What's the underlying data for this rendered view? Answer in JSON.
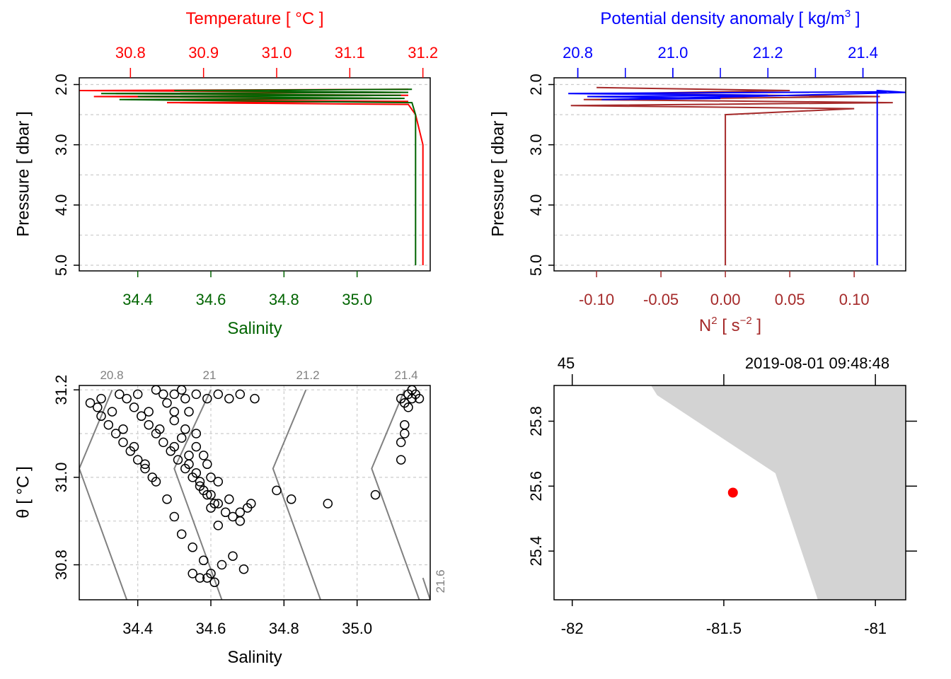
{
  "colors": {
    "temperature": "#ff0000",
    "salinity": "#006400",
    "density": "#0000ff",
    "n2": "#a52a2a",
    "isopycnal": "#808080",
    "land": "#d3d3d3",
    "station": "#ff0000",
    "grid": "#cccccc"
  },
  "chart_data": [
    {
      "id": "ts-profile",
      "type": "line",
      "title": "",
      "ylabel": "Pressure [ dbar ]",
      "ylim": [
        5.0,
        1.9
      ],
      "y_ticks": [
        "2.0",
        "3.0",
        "4.0",
        "5.0"
      ],
      "y_tick_values": [
        2.0,
        3.0,
        4.0,
        5.0
      ],
      "top_axis": {
        "label": "Temperature [ °C ]",
        "range": [
          30.73,
          31.21
        ],
        "ticks": [
          "30.8",
          "30.9",
          "31.0",
          "31.1",
          "31.2"
        ],
        "tick_values": [
          30.8,
          30.9,
          31.0,
          31.1,
          31.2
        ]
      },
      "bottom_axis": {
        "label": "Salinity",
        "range": [
          34.24,
          35.2
        ],
        "ticks": [
          "34.4",
          "34.6",
          "34.8",
          "35.0"
        ],
        "tick_values": [
          34.4,
          34.6,
          34.8,
          35.0
        ]
      },
      "grid": true,
      "series": [
        {
          "axis": "top",
          "y": [
            2.08,
            2.1,
            2.13,
            2.15,
            2.18,
            2.2,
            2.23,
            2.25,
            2.28,
            2.3,
            2.33,
            2.5,
            3.0,
            3.5,
            4.0,
            4.5,
            5.0
          ],
          "x": [
            31.18,
            30.73,
            31.17,
            30.78,
            31.18,
            30.75,
            31.17,
            30.8,
            31.18,
            30.85,
            31.18,
            31.19,
            31.2,
            31.2,
            31.2,
            31.2,
            31.2
          ]
        },
        {
          "axis": "bottom",
          "y": [
            2.08,
            2.1,
            2.13,
            2.15,
            2.18,
            2.2,
            2.23,
            2.25,
            2.3,
            2.5,
            3.0,
            3.5,
            4.0,
            4.5,
            5.0
          ],
          "x": [
            35.15,
            34.5,
            35.14,
            34.3,
            35.12,
            34.4,
            35.13,
            34.35,
            35.15,
            35.16,
            35.16,
            35.16,
            35.16,
            35.16,
            35.16
          ]
        }
      ]
    },
    {
      "id": "density-profile",
      "type": "line",
      "title": "",
      "ylabel": "Pressure [ dbar ]",
      "ylim": [
        5.0,
        1.9
      ],
      "y_ticks": [
        "2.0",
        "3.0",
        "4.0",
        "5.0"
      ],
      "y_tick_values": [
        2.0,
        3.0,
        4.0,
        5.0
      ],
      "top_axis": {
        "label": "Potential density anomaly [ kg/m",
        "label_sup": "3",
        "label_end": " ]",
        "range": [
          20.75,
          21.49
        ],
        "ticks": [
          "20.8",
          "21.0",
          "21.2",
          "21.4"
        ],
        "tick_values": [
          20.8,
          21.0,
          21.2,
          21.4
        ],
        "minor_ticks": [
          20.8,
          20.9,
          21.0,
          21.1,
          21.2,
          21.3,
          21.4
        ]
      },
      "bottom_axis": {
        "label": "N",
        "label_sup": "2",
        "label_mid": " [ s",
        "label_sup2": "−2",
        "label_end": " ]",
        "range": [
          -0.133,
          0.14
        ],
        "ticks": [
          "-0.10",
          "-0.05",
          "0.00",
          "0.05",
          "0.10"
        ],
        "tick_values": [
          -0.1,
          -0.05,
          0.0,
          0.05,
          0.1
        ]
      },
      "grid": true,
      "series": [
        {
          "axis": "top",
          "y": [
            2.12,
            2.15,
            2.18,
            2.2,
            2.23,
            2.25,
            2.2,
            2.13,
            2.1,
            2.15,
            2.5,
            3.0,
            3.5,
            4.0,
            4.5,
            5.0
          ],
          "x": [
            21.45,
            20.78,
            21.2,
            20.82,
            21.1,
            20.85,
            21.15,
            21.49,
            21.43,
            21.43,
            21.43,
            21.43,
            21.43,
            21.43,
            21.43,
            21.43
          ]
        },
        {
          "axis": "bottom",
          "y": [
            2.05,
            2.1,
            2.15,
            2.2,
            2.25,
            2.3,
            2.35,
            2.4,
            2.5,
            3.0,
            3.5,
            4.0,
            4.5,
            5.0
          ],
          "x": [
            -0.1,
            0.05,
            -0.08,
            0.12,
            -0.11,
            0.13,
            -0.12,
            0.1,
            0.0,
            0.0,
            0.0,
            0.0,
            0.0,
            0.0
          ]
        }
      ]
    },
    {
      "id": "ts-diagram",
      "type": "scatter",
      "title": "",
      "xlabel": "Salinity",
      "ylabel": "θ [ °C ]",
      "xlim": [
        34.24,
        35.2
      ],
      "ylim": [
        30.72,
        31.21
      ],
      "x_ticks": [
        "34.4",
        "34.6",
        "34.8",
        "35.0"
      ],
      "x_tick_values": [
        34.4,
        34.6,
        34.8,
        35.0
      ],
      "y_ticks": [
        "30.8",
        "31.0",
        "31.2"
      ],
      "y_tick_values": [
        30.8,
        31.0,
        31.2
      ],
      "grid": true,
      "isopycnal_labels": [
        "20.8",
        "21",
        "21.2",
        "21.4",
        "21.6"
      ],
      "isopycnals": [
        {
          "sigma": 20.8,
          "x": [
            34.37,
            34.24,
            34.33
          ],
          "y": [
            30.72,
            31.02,
            31.2
          ]
        },
        {
          "sigma": 21.0,
          "x": [
            34.63,
            34.5,
            34.6
          ],
          "y": [
            30.72,
            31.02,
            31.2
          ]
        },
        {
          "sigma": 21.2,
          "x": [
            34.9,
            34.77,
            34.86
          ],
          "y": [
            30.72,
            31.02,
            31.2
          ]
        },
        {
          "sigma": 21.4,
          "x": [
            35.17,
            35.04,
            35.13
          ],
          "y": [
            30.72,
            31.02,
            31.2
          ]
        },
        {
          "sigma": 21.6,
          "x": [
            35.2,
            35.18
          ],
          "y": [
            30.72,
            30.77
          ]
        }
      ],
      "points": {
        "x": [
          34.27,
          34.29,
          34.3,
          34.32,
          34.34,
          34.36,
          34.38,
          34.4,
          34.42,
          34.44,
          34.3,
          34.33,
          34.36,
          34.39,
          34.42,
          34.45,
          34.48,
          34.5,
          34.52,
          34.55,
          34.58,
          34.6,
          34.63,
          34.66,
          34.69,
          34.4,
          34.43,
          34.46,
          34.5,
          34.54,
          34.57,
          34.6,
          34.62,
          34.64,
          34.66,
          34.68,
          34.7,
          34.45,
          34.48,
          34.5,
          34.52,
          34.54,
          34.56,
          34.58,
          34.6,
          34.62,
          34.35,
          34.37,
          34.39,
          34.41,
          34.43,
          34.45,
          34.47,
          34.49,
          34.51,
          34.53,
          34.55,
          34.57,
          34.59,
          34.61,
          34.47,
          34.5,
          34.53,
          34.56,
          34.59,
          34.62,
          34.65,
          34.68,
          34.71,
          34.5,
          34.53,
          34.56,
          34.59,
          34.62,
          34.65,
          34.68,
          34.72,
          34.78,
          34.82,
          34.92,
          35.05,
          35.12,
          35.13,
          35.14,
          35.15,
          35.14,
          35.13,
          35.12,
          35.15,
          35.16,
          35.17,
          35.12,
          35.13,
          34.55,
          34.57,
          34.59,
          34.61,
          34.6,
          34.58,
          34.56,
          34.54,
          34.52
        ],
        "y": [
          31.17,
          31.16,
          31.14,
          31.12,
          31.1,
          31.08,
          31.06,
          31.04,
          31.02,
          31.0,
          31.18,
          31.15,
          31.11,
          31.07,
          31.03,
          30.99,
          30.95,
          30.91,
          30.87,
          30.84,
          30.81,
          30.78,
          30.8,
          30.82,
          30.79,
          31.19,
          31.15,
          31.11,
          31.07,
          31.03,
          30.99,
          30.96,
          30.94,
          30.92,
          30.91,
          30.9,
          30.93,
          31.2,
          31.17,
          31.13,
          31.09,
          31.05,
          31.01,
          30.97,
          30.93,
          30.89,
          31.19,
          31.18,
          31.16,
          31.14,
          31.12,
          31.1,
          31.08,
          31.06,
          31.04,
          31.02,
          31.0,
          30.98,
          30.96,
          30.94,
          31.19,
          31.15,
          31.11,
          31.07,
          31.03,
          30.99,
          30.95,
          30.92,
          30.94,
          31.19,
          31.18,
          31.19,
          31.18,
          31.19,
          31.18,
          31.19,
          31.18,
          30.97,
          30.95,
          30.94,
          30.96,
          31.18,
          31.17,
          31.19,
          31.18,
          31.16,
          31.12,
          31.08,
          31.2,
          31.19,
          31.18,
          31.04,
          31.1,
          30.78,
          30.77,
          30.77,
          30.76,
          31.0,
          31.05,
          31.1,
          31.15,
          31.2
        ]
      }
    },
    {
      "id": "station-map",
      "type": "scatter",
      "title": "",
      "xlim": [
        -82.06,
        -80.9
      ],
      "ylim": [
        25.25,
        25.91
      ],
      "x_ticks": [
        "-82",
        "-81.5",
        "-81"
      ],
      "x_tick_values": [
        -82,
        -81.5,
        -81
      ],
      "y_ticks": [
        "25.4",
        "25.6",
        "25.8"
      ],
      "y_tick_values": [
        25.4,
        25.6,
        25.8
      ],
      "top_left_label": "45",
      "top_right_label": "2019-08-01 09:48:48",
      "land_polygon": {
        "x": [
          -81.74,
          -81.72,
          -81.33,
          -81.19,
          -80.9,
          -80.9
        ],
        "y": [
          25.91,
          25.88,
          25.64,
          25.25,
          25.25,
          25.91
        ]
      },
      "station": {
        "lon": -81.47,
        "lat": 25.58
      }
    }
  ]
}
